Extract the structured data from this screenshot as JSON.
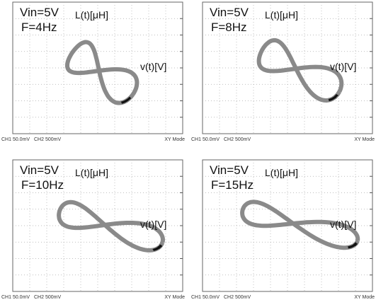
{
  "panels": [
    {
      "vin": "Vin=5V",
      "freq": "F=4Hz",
      "l_label": "L(t)[μH]",
      "v_label": "v(t)[V]",
      "ch1": "CH1  50.0mV",
      "ch2": "CH2  500mV",
      "mode": "XY Mode"
    },
    {
      "vin": "Vin=5V",
      "freq": "F=8Hz",
      "l_label": "L(t)[μH]",
      "v_label": "v(t)[V]",
      "ch1": "CH1  50.0mV",
      "ch2": "CH2  500mV",
      "mode": "XY Mode"
    },
    {
      "vin": "Vin=5V",
      "freq": "F=10Hz",
      "l_label": "L(t)[μH]",
      "v_label": "v(t)[V]",
      "ch1": "CH1  50.0mV",
      "ch2": "CH2  500mV",
      "mode": "XY Mode"
    },
    {
      "vin": "Vin=5V",
      "freq": "F=15Hz",
      "l_label": "L(t)[μH]",
      "v_label": "v(t)[V]",
      "ch1": "CH1  50.0mV",
      "ch2": "CH2  500mV",
      "mode": "XY Mode"
    }
  ]
}
